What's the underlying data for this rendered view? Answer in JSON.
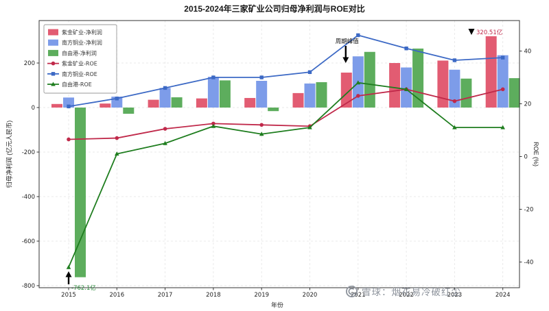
{
  "chart_data": {
    "type": "combo-bar-line",
    "title": "2015-2024年三家矿业公司归母净利润与ROE对比",
    "xlabel": "年份",
    "ylabel_left": "归母净利润 (亿元人民币)",
    "ylabel_right": "ROE (%)",
    "categories": [
      "2015",
      "2016",
      "2017",
      "2018",
      "2019",
      "2020",
      "2021",
      "2022",
      "2023",
      "2024"
    ],
    "bar_series": [
      {
        "name": "紫金矿业-净利润",
        "color": "#e25c72",
        "values": [
          16,
          18,
          35,
          41,
          43,
          65,
          157,
          200,
          211,
          320.51
        ]
      },
      {
        "name": "南方铜业-净利润",
        "color": "#7d9ce9",
        "values": [
          45,
          49,
          88,
          138,
          120,
          108,
          230,
          180,
          170,
          235
        ]
      },
      {
        "name": "自由港-净利润",
        "color": "#5dad5d",
        "values": [
          -762.1,
          -28,
          46,
          122,
          -16,
          114,
          250,
          265,
          130,
          132
        ]
      }
    ],
    "line_series": [
      {
        "name": "紫金矿业-ROE",
        "color": "#c0294a",
        "marker": "circle",
        "values": [
          6.5,
          7,
          10.5,
          12.5,
          12,
          11.5,
          23,
          25.5,
          21,
          25.5
        ]
      },
      {
        "name": "南方铜业-ROE",
        "color": "#3c69c5",
        "marker": "square",
        "values": [
          19,
          22,
          26,
          30,
          30,
          32,
          46,
          41,
          36.5,
          37.5
        ]
      },
      {
        "name": "自由港-ROE",
        "color": "#1e7d1e",
        "marker": "triangle",
        "values": [
          -42,
          1,
          5,
          11.5,
          8.5,
          11,
          28,
          25.5,
          11,
          11
        ]
      }
    ],
    "yticks_left": [
      200,
      0,
      -200,
      -400,
      -600,
      -800
    ],
    "yticks_right": [
      40,
      20,
      0,
      -20,
      -40
    ],
    "ylim_left": [
      -810,
      390
    ],
    "ylim_right": [
      -50,
      52
    ],
    "grid": true,
    "legend_position": "upper-left",
    "annotations": [
      {
        "id": "freeport-2015-loss",
        "text": "-762.1亿",
        "color": "#2e8b3e"
      },
      {
        "id": "cycle-peak",
        "text": "周期峰值",
        "color": "#111111"
      },
      {
        "id": "zijin-2024-profit",
        "text": "320.51亿",
        "color": "#c0294a"
      }
    ]
  },
  "watermark": {
    "text": "雪球：烟花易冷破红尘"
  }
}
